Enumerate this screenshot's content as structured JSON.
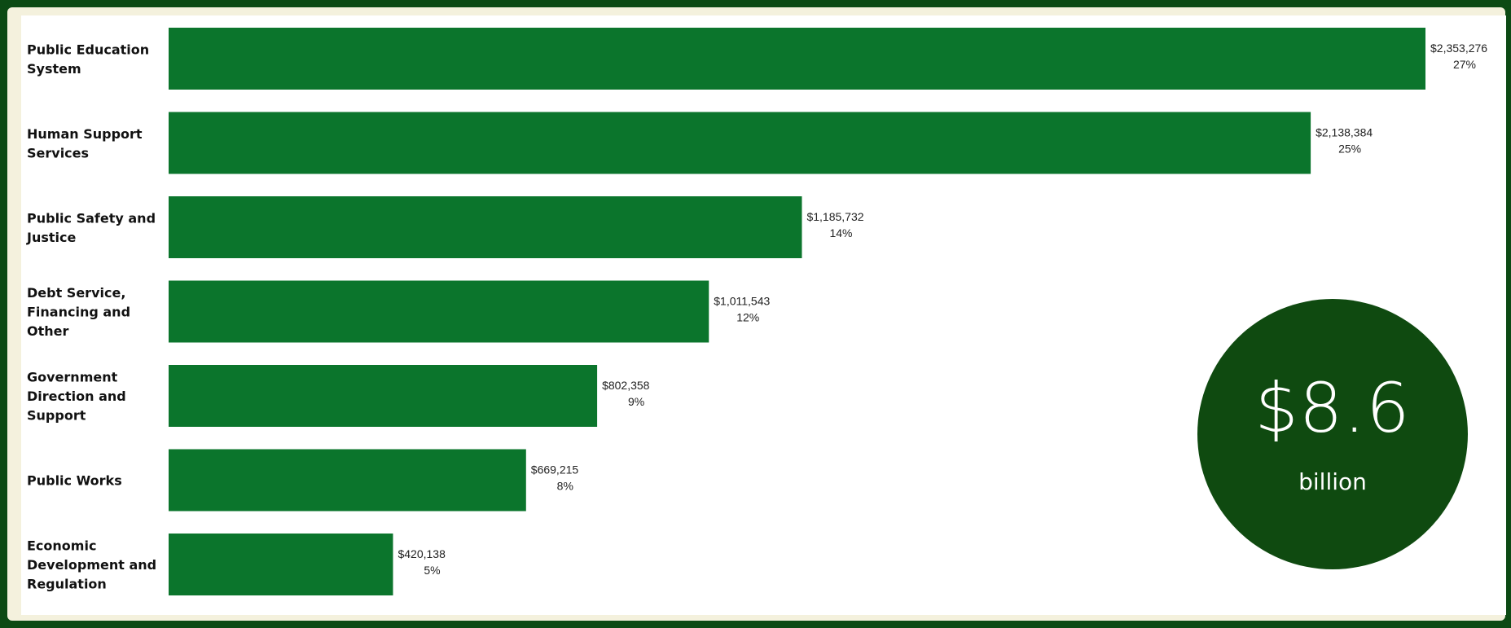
{
  "chart_data": {
    "type": "bar",
    "orientation": "horizontal",
    "categories": [
      "Public Education System",
      "Human Support Services",
      "Public Safety and Justice",
      "Debt Service, Financing and Other",
      "Government Direction and Support",
      "Public Works",
      "Economic Development and Regulation"
    ],
    "values": [
      2353276,
      2138384,
      1185732,
      1011543,
      802358,
      669215,
      420138
    ],
    "value_labels": [
      "$2,353,276",
      "$2,138,384",
      "$1,185,732",
      "$1,011,543",
      "$802,358",
      "$669,215",
      "$420,138"
    ],
    "percent_labels": [
      "27%",
      "25%",
      "14%",
      "12%",
      "9%",
      "8%",
      "5%"
    ],
    "title": "",
    "xlabel": "",
    "ylabel": "",
    "grid": false,
    "bar_color": "#0b752c"
  },
  "total": {
    "amount": "$8.6",
    "unit": "billion",
    "color": "#0f4a10"
  }
}
